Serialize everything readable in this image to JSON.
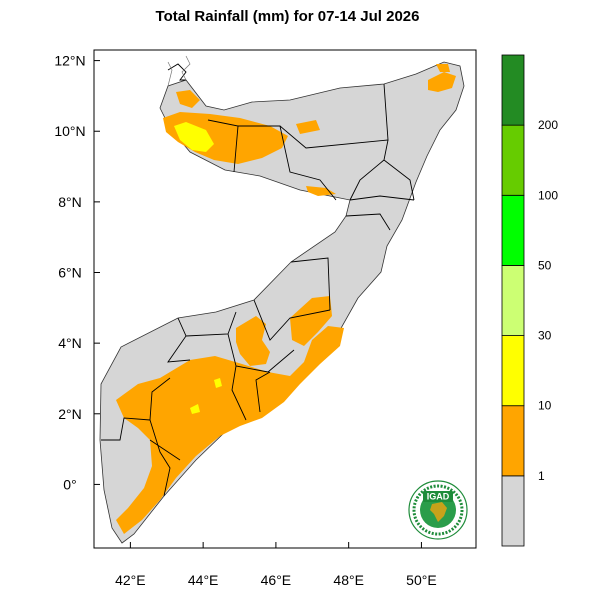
{
  "title": "Total Rainfall (mm) for 07-14 Jul 2026",
  "map": {
    "lon_range": [
      41,
      51.5
    ],
    "lat_range": [
      -1.8,
      12.3
    ],
    "x_ticks": [
      {
        "value": 42,
        "label": "42°E"
      },
      {
        "value": 44,
        "label": "44°E"
      },
      {
        "value": 46,
        "label": "46°E"
      },
      {
        "value": 48,
        "label": "48°E"
      },
      {
        "value": 50,
        "label": "50°E"
      }
    ],
    "y_ticks": [
      {
        "value": 12,
        "label": "12°N"
      },
      {
        "value": 10,
        "label": "10°N"
      },
      {
        "value": 8,
        "label": "8°N"
      },
      {
        "value": 6,
        "label": "6°N"
      },
      {
        "value": 4,
        "label": "4°N"
      },
      {
        "value": 2,
        "label": "2°N"
      },
      {
        "value": 0,
        "label": "0°"
      }
    ],
    "land_color": "#d6d6d6",
    "border_color": "#000000"
  },
  "colorbar": {
    "bins": [
      {
        "label": "",
        "color": "#d6d6d6"
      },
      {
        "label": "1",
        "color": "#ffa500"
      },
      {
        "label": "10",
        "color": "#ffff00"
      },
      {
        "label": "30",
        "color": "#ccff73"
      },
      {
        "label": "50",
        "color": "#00ff00"
      },
      {
        "label": "100",
        "color": "#66cc00"
      },
      {
        "label": "200",
        "color": "#238b23"
      }
    ]
  },
  "logo": {
    "text": "IGAD",
    "colors": {
      "ring": "#1e8c3a",
      "inner": "#2a9d4a",
      "gold": "#c8a21a"
    }
  }
}
